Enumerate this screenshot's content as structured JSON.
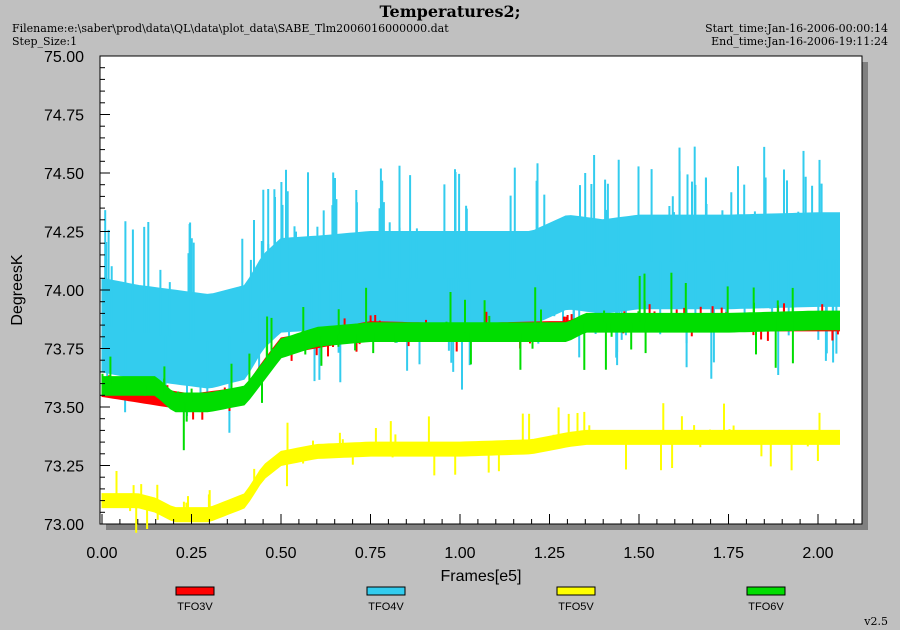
{
  "header": {
    "title": "Temperatures2;",
    "filename": "Filename:e:\\saber\\prod\\data\\QL\\data\\plot_data\\SABE_Tlm2006016000000.dat",
    "step_size": "Step_Size:1",
    "start_time": "Start_time:Jan-16-2006-00:00:14",
    "end_time": "End_time:Jan-16-2006-19:11:24"
  },
  "version": "v2.5",
  "colors": {
    "TFO3V": "#ff0000",
    "TFO4V": "#33ccee",
    "TFO5V": "#ffff00",
    "TFO6V": "#00dd00"
  },
  "chart_data": {
    "type": "line",
    "title": "Temperatures2;",
    "xlabel": "Frames[e5]",
    "ylabel": "DegreesK",
    "xlim": [
      0,
      2.2
    ],
    "ylim": [
      73.0,
      75.0
    ],
    "x_ticks": [
      "0.00",
      "0.25",
      "0.50",
      "0.75",
      "1.00",
      "1.25",
      "1.50",
      "1.75",
      "2.00"
    ],
    "y_ticks": [
      "73.00",
      "73.25",
      "73.50",
      "73.75",
      "74.00",
      "74.25",
      "74.50",
      "74.75",
      "75.00"
    ],
    "legend_position": "bottom",
    "series": [
      {
        "name": "TFO3V",
        "color": "#ff0000",
        "x": [
          0.0,
          0.25,
          0.4,
          0.45,
          0.5,
          0.75,
          1.0,
          1.25,
          1.3,
          1.35,
          1.5,
          1.75,
          2.0,
          2.06
        ],
        "y": [
          73.58,
          73.52,
          73.55,
          73.66,
          73.76,
          73.83,
          73.82,
          73.83,
          73.83,
          73.86,
          73.86,
          73.86,
          73.86,
          73.86
        ]
      },
      {
        "name": "TFO4V",
        "color": "#33ccee",
        "x": [
          0.0,
          0.1,
          0.2,
          0.3,
          0.4,
          0.45,
          0.5,
          0.6,
          0.75,
          1.0,
          1.2,
          1.3,
          1.4,
          1.5,
          1.75,
          2.0,
          2.06
        ],
        "y": [
          73.85,
          73.82,
          73.8,
          73.78,
          73.82,
          73.95,
          74.02,
          74.03,
          74.05,
          74.05,
          74.05,
          74.12,
          74.1,
          74.12,
          74.12,
          74.13,
          74.13
        ]
      },
      {
        "name": "TFO5V",
        "color": "#ffff00",
        "x": [
          0.0,
          0.1,
          0.15,
          0.2,
          0.3,
          0.4,
          0.45,
          0.5,
          0.6,
          0.75,
          1.0,
          1.2,
          1.3,
          1.35,
          1.5,
          1.75,
          2.0,
          2.06
        ],
        "y": [
          73.1,
          73.1,
          73.08,
          73.04,
          73.04,
          73.1,
          73.22,
          73.28,
          73.31,
          73.32,
          73.32,
          73.33,
          73.36,
          73.37,
          73.37,
          73.37,
          73.37,
          73.37
        ]
      },
      {
        "name": "TFO6V",
        "color": "#00dd00",
        "x": [
          0.0,
          0.15,
          0.2,
          0.3,
          0.4,
          0.45,
          0.5,
          0.6,
          0.75,
          1.0,
          1.25,
          1.3,
          1.35,
          1.5,
          1.75,
          2.0,
          2.06
        ],
        "y": [
          73.59,
          73.59,
          73.52,
          73.52,
          73.55,
          73.65,
          73.75,
          73.8,
          73.82,
          73.82,
          73.82,
          73.82,
          73.86,
          73.86,
          73.86,
          73.87,
          73.87
        ]
      }
    ]
  }
}
